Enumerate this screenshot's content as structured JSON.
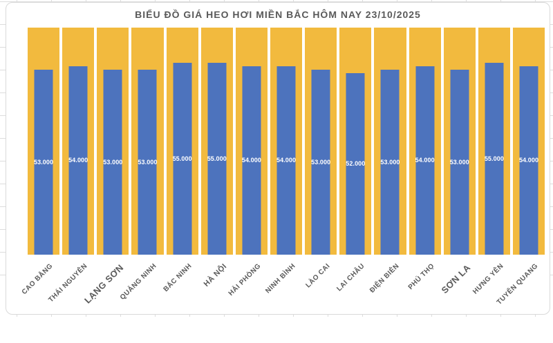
{
  "page": {
    "background_color": "#ffffff",
    "grid_color": "#dcdcdc",
    "frame_border_color": "#d9d9d9"
  },
  "chart_data": {
    "type": "bar",
    "title": "BIỂU ĐỒ GIÁ HEO HƠI MIỀN BẮC HÔM NAY 23/10/2025",
    "title_color": "#595959",
    "categories": [
      "CAO BẰNG",
      "THÁI NGUYÊN",
      "LẠNG SƠN",
      "QUẢNG NINH",
      "BẮC NINH",
      "HÀ NỘI",
      "HẢI PHÒNG",
      "NINH BÌNH",
      "LÀO CAI",
      "LAI CHÂU",
      "ĐIỆN BIÊN",
      "PHÚ THỌ",
      "SƠN LA",
      "HƯNG YÊN",
      "TUYÊN QUANG"
    ],
    "values": [
      53000,
      54000,
      53000,
      53000,
      55000,
      55000,
      54000,
      54000,
      53000,
      52000,
      53000,
      54000,
      53000,
      55000,
      54000
    ],
    "value_labels": [
      "53.000",
      "54.000",
      "53.000",
      "53.000",
      "55.000",
      "55.000",
      "54.000",
      "54.000",
      "53.000",
      "52.000",
      "53.000",
      "54.000",
      "53.000",
      "55.000",
      "54.000"
    ],
    "value_label_color": "#ffffff",
    "bar_color": "#4D73BD",
    "background_bars": {
      "name": "scale-background-bar",
      "value": 65000,
      "color": "#F2BA3E"
    },
    "ylim": [
      0,
      65000
    ],
    "xlabel": "",
    "ylabel": "",
    "legend": "none",
    "grid": false,
    "axis_label_color": "#595959",
    "category_label_rotation_deg": -45,
    "category_label_font_sizes": [
      10,
      10,
      13,
      10,
      10,
      11,
      10,
      10,
      10,
      10,
      10,
      10,
      13,
      10,
      10
    ]
  }
}
